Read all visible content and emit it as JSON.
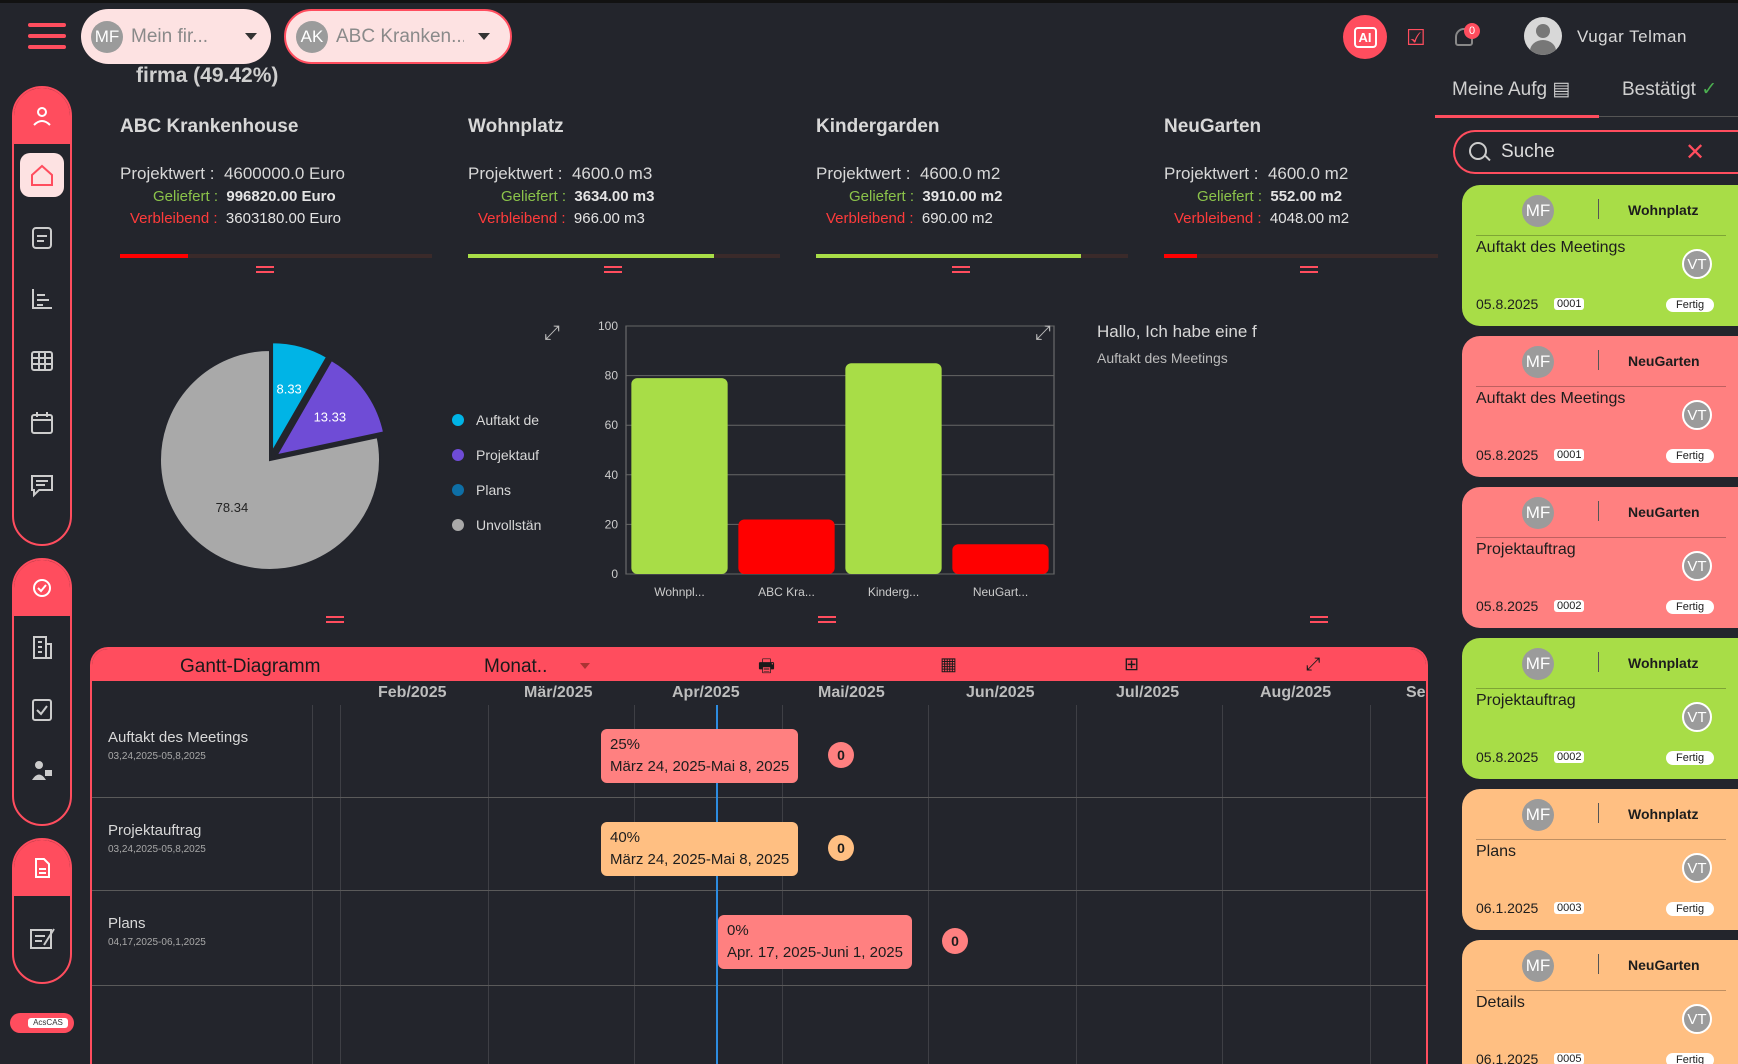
{
  "header": {
    "company_select": {
      "initials": "MF",
      "label": "Mein fir..."
    },
    "project_select": {
      "initials": "AK",
      "label": "ABC Kranken..."
    },
    "ai_label": "AI",
    "notification_count": "0",
    "user_name": "Vugar Telman"
  },
  "colors": {
    "accent": "#ff4d5e",
    "green": "#a8dd47",
    "red": "#ff0000",
    "orange": "#ffbf82",
    "salmon": "#ff8080"
  },
  "firma_title": "firma (49.42%)",
  "projects": [
    {
      "name": "ABC Krankenhouse",
      "wert_label": "Projektwert :",
      "wert": "4600000.0 Euro",
      "geliefert_label": "Geliefert :",
      "geliefert": "996820.00 Euro",
      "verbleibend_label": "Verbleibend :",
      "verbleibend": "3603180.00 Euro",
      "progress": 0.217
    },
    {
      "name": "Wohnplatz",
      "wert_label": "Projektwert :",
      "wert": "4600.0 m3",
      "geliefert_label": "Geliefert :",
      "geliefert": "3634.00 m3",
      "verbleibend_label": "Verbleibend :",
      "verbleibend": "966.00 m3",
      "progress": 0.79
    },
    {
      "name": "Kindergarden",
      "wert_label": "Projektwert :",
      "wert": "4600.0 m2",
      "geliefert_label": "Geliefert :",
      "geliefert": "3910.00 m2",
      "verbleibend_label": "Verbleibend :",
      "verbleibend": "690.00 m2",
      "progress": 0.85
    },
    {
      "name": "NeuGarten",
      "wert_label": "Projektwert :",
      "wert": "4600.0 m2",
      "geliefert_label": "Geliefert :",
      "geliefert": "552.00 m2",
      "verbleibend_label": "Verbleibend :",
      "verbleibend": "4048.00 m2",
      "progress": 0.12
    }
  ],
  "chart_data": [
    {
      "type": "pie",
      "slices": [
        {
          "label": "Auftakt de",
          "value": 8.33,
          "color": "#00b4e6"
        },
        {
          "label": "Projektauf",
          "value": 13.33,
          "color": "#6f4cd6"
        },
        {
          "label": "Plans",
          "value": 0,
          "color": "#0e6fa6"
        },
        {
          "label": "Unvollstän",
          "value": 78.34,
          "color": "#a9a9a9"
        }
      ]
    },
    {
      "type": "bar",
      "categories": [
        "Wohnpl...",
        "ABC Kra...",
        "Kinderg...",
        "NeuGart..."
      ],
      "values": [
        79,
        22,
        85,
        12
      ],
      "colors": [
        "#a8dd47",
        "#ff0000",
        "#a8dd47",
        "#ff0000"
      ],
      "ylim": [
        0,
        100
      ],
      "yticks": [
        0,
        20,
        40,
        60,
        80,
        100
      ],
      "grid": true
    }
  ],
  "chat": {
    "line1": "Hallo, Ich habe eine f",
    "line2": "Auftakt des Meetings"
  },
  "gantt": {
    "title": "Gantt-Diagramm",
    "view": "Monat..",
    "months": [
      "Feb/2025",
      "Mär/2025",
      "Apr/2025",
      "Mai/2025",
      "Jun/2025",
      "Jul/2025",
      "Aug/2025",
      "Sep"
    ],
    "rows": [
      {
        "name": "Auftakt des Meetings",
        "dates": "03,24,2025-05,8,2025",
        "percent": "25%",
        "range": "März 24, 2025-Mai 8, 2025",
        "count": "0",
        "color": "#ff8080"
      },
      {
        "name": "Projektauftrag",
        "dates": "03,24,2025-05,8,2025",
        "percent": "40%",
        "range": "März 24, 2025-Mai 8, 2025",
        "count": "0",
        "color": "#ffbf82"
      },
      {
        "name": "Plans",
        "dates": "04,17,2025-06,1,2025",
        "percent": "0%",
        "range": "Apr. 17, 2025-Juni 1, 2025",
        "count": "0",
        "color": "#ff8080"
      }
    ]
  },
  "right": {
    "tab1": "Meine Aufg",
    "tab2": "Bestätigt",
    "search_placeholder": "Suche",
    "tasks": [
      {
        "initials": "MF",
        "project": "Wohnplatz",
        "title": "Auftakt des Meetings",
        "assignee": "VT",
        "date": "05.8.2025",
        "num": "0001",
        "status": "Fertig",
        "color": "#a8dd47"
      },
      {
        "initials": "MF",
        "project": "NeuGarten",
        "title": "Auftakt des Meetings",
        "assignee": "VT",
        "date": "05.8.2025",
        "num": "0001",
        "status": "Fertig",
        "color": "#ff8080"
      },
      {
        "initials": "MF",
        "project": "NeuGarten",
        "title": "Projektauftrag",
        "assignee": "VT",
        "date": "05.8.2025",
        "num": "0002",
        "status": "Fertig",
        "color": "#ff8080"
      },
      {
        "initials": "MF",
        "project": "Wohnplatz",
        "title": "Projektauftrag",
        "assignee": "VT",
        "date": "05.8.2025",
        "num": "0002",
        "status": "Fertig",
        "color": "#a8dd47"
      },
      {
        "initials": "MF",
        "project": "Wohnplatz",
        "title": "Plans",
        "assignee": "VT",
        "date": "06.1.2025",
        "num": "0003",
        "status": "Fertig",
        "color": "#ffbf82"
      },
      {
        "initials": "MF",
        "project": "NeuGarten",
        "title": "Details",
        "assignee": "VT",
        "date": "06.1.2025",
        "num": "0005",
        "status": "Fertig",
        "color": "#ffbf82"
      }
    ]
  },
  "footer_logo": "AcsCAS",
  "sidebar_icons": [
    "user-icon",
    "home-icon",
    "clipboard-icon",
    "chart-icon",
    "grid-icon",
    "calendar-icon",
    "message-icon",
    "badge-icon",
    "building-icon",
    "checklist-icon",
    "worker-icon",
    "document-icon",
    "signature-icon"
  ]
}
